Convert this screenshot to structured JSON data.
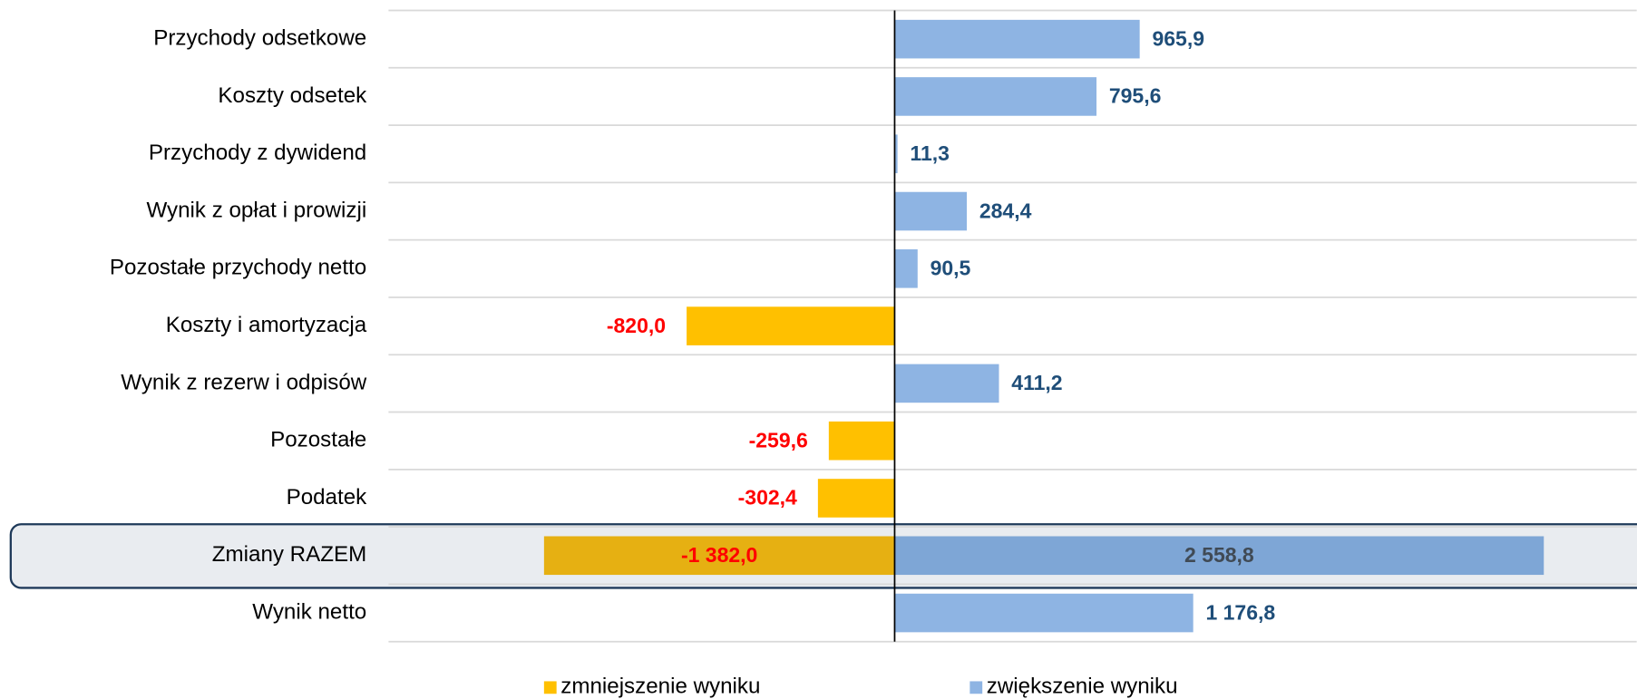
{
  "chart_data": {
    "type": "hbar",
    "categories": [
      "Przychody odsetkowe",
      "Koszty odsetek",
      "Przychody z dywidend",
      "Wynik z opłat i prowizji",
      "Pozostałe przychody netto",
      "Koszty i amortyzacja",
      "Wynik z rezerw i odpisów",
      "Pozostałe",
      "Podatek",
      "Zmiany RAZEM",
      "Wynik netto"
    ],
    "series": [
      {
        "name": "zmniejszenie wyniku",
        "color": "#ffc000",
        "highlight_color": "#e6b012",
        "label_color": "#ff0000",
        "values": [
          null,
          null,
          null,
          null,
          null,
          -820.0,
          null,
          -259.6,
          -302.4,
          -1382.0,
          null
        ],
        "value_labels": [
          null,
          null,
          null,
          null,
          null,
          "-820,0",
          null,
          "-259,6",
          "-302,4",
          "-1 382,0",
          null
        ]
      },
      {
        "name": "zwiększenie wyniku",
        "color": "#8eb4e3",
        "highlight_color": "#7ea6d6",
        "label_color": "#1f4e79",
        "values": [
          965.9,
          795.6,
          11.3,
          284.4,
          90.5,
          null,
          411.2,
          null,
          null,
          2558.8,
          1176.8
        ],
        "value_labels": [
          "965,9",
          "795,6",
          "11,3",
          "284,4",
          "90,5",
          null,
          "411,2",
          null,
          null,
          "2 558,8",
          "1 176,8"
        ]
      }
    ],
    "highlighted_category": "Zmiany RAZEM",
    "xlim": [
      -1995,
      2925
    ],
    "legend": "bottom"
  }
}
